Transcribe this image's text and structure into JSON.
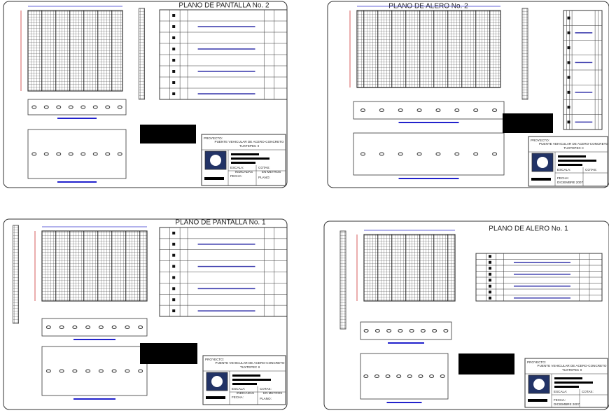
{
  "sheets": [
    {
      "title": "PLANO DE PANTALLA No. 2",
      "title_block": {
        "project_label": "PROYECTO:",
        "project_line1": "PUENTE VEHICULAR DE ACERO-CONCRETO",
        "project_line2": "TUXTEPEC II",
        "scale_label": "ESCALA:",
        "scale_value": "INDICADAS",
        "dims_label": "COTAS:",
        "dims_value": "EN METROS",
        "date_label": "FECHA:",
        "sheet_label": "PLANO:"
      }
    },
    {
      "title": "PLANO DE ALERO No. 2",
      "title_block": {
        "project_label": "PROYECTO:",
        "project_line1": "PUENTE VEHICULAR DE ACERO-CONCRETO",
        "project_line2": "TUXTEPEC II",
        "scale_label": "ESCALA:",
        "dims_label": "COTAS:",
        "date_label": "FECHA:",
        "date_value": "DICIEMBRE 2007"
      }
    },
    {
      "title": "PLANO DE PANTALLA No. 1",
      "title_block": {
        "project_label": "PROYECTO:",
        "project_line1": "PUENTE VEHICULAR DE ACERO-CONCRETO",
        "project_line2": "TUXTEPEC II",
        "scale_label": "ESCALA:",
        "scale_value": "INDICADAS",
        "dims_label": "COTAS:",
        "dims_value": "EN METROS",
        "date_label": "FECHA:",
        "sheet_label": "PLANO:"
      }
    },
    {
      "title": "PLANO DE ALERO No. 1",
      "title_block": {
        "project_label": "PROYECTO:",
        "project_line1": "PUENTE VEHICULAR DE ACERO-CONCRETO",
        "project_line2": "TUXTEPEC II",
        "scale_label": "ESCALA:",
        "dims_label": "COTAS:",
        "date_label": "FECHA:",
        "date_value": "DICIEMBRE 2007"
      }
    }
  ]
}
